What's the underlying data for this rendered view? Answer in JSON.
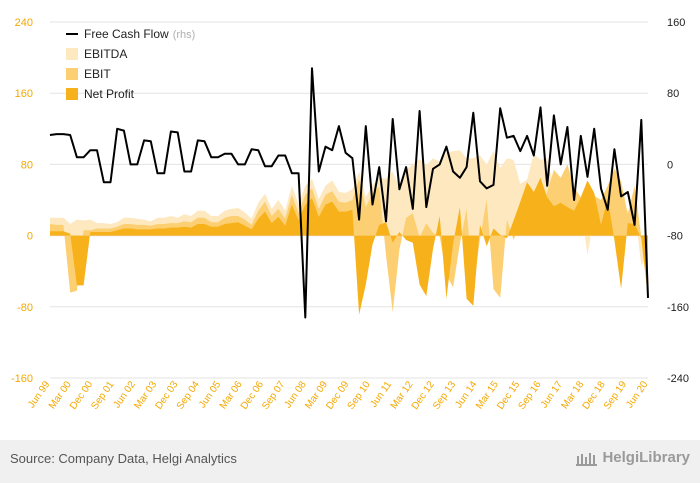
{
  "chart_data": {
    "type": "area",
    "title": "",
    "xlabel": "",
    "ylabel": "",
    "ylim_left": [
      -160,
      240
    ],
    "ylim_right": [
      -240,
      160
    ],
    "left_ticks": [
      "240",
      "160",
      "80",
      "0",
      "-80",
      "-160"
    ],
    "right_ticks": [
      "160",
      "80",
      "0",
      "-80",
      "-160",
      "-240"
    ],
    "x_tick_labels": [
      "Jun 99",
      "Mar 00",
      "Dec 00",
      "Sep 01",
      "Jun 02",
      "Mar 03",
      "Dec 03",
      "Sep 04",
      "Jun 05",
      "Mar 06",
      "Dec 06",
      "Sep 07",
      "Jun 08",
      "Mar 09",
      "Dec 09",
      "Sep 10",
      "Jun 11",
      "Mar 12",
      "Dec 12",
      "Sep 13",
      "Jun 14",
      "Mar 15",
      "Dec 15",
      "Sep 16",
      "Jun 17",
      "Mar 18",
      "Dec 18",
      "Sep 19",
      "Jun 20"
    ],
    "legend_position": "top-left",
    "colors": {
      "fcf": "#000000",
      "ebitda": "#fde8c0",
      "ebit": "#fccf73",
      "net_profit": "#f7b21b",
      "left_axis": "#f5a800",
      "grid": "#e3e3e3"
    },
    "series": [
      {
        "name": "Free Cash Flow",
        "axis": "right",
        "values": [
          33,
          34,
          34,
          33,
          8,
          8,
          16,
          16,
          -20,
          -20,
          40,
          38,
          0,
          0,
          27,
          26,
          -10,
          -10,
          37,
          36,
          -8,
          -8,
          27,
          26,
          8,
          8,
          12,
          12,
          0,
          0,
          17,
          16,
          -2,
          -2,
          10,
          10,
          -10,
          -10,
          -172,
          108,
          -8,
          20,
          16,
          43,
          13,
          7,
          -62,
          43,
          -45,
          -3,
          -64,
          51,
          -28,
          -3,
          -50,
          60,
          -48,
          -5,
          0,
          20,
          -8,
          -15,
          -3,
          58,
          -19,
          -27,
          -23,
          63,
          30,
          32,
          15,
          32,
          10,
          64,
          -24,
          55,
          0,
          42,
          -40,
          32,
          -14,
          40,
          -27,
          -51,
          17,
          -36,
          -31,
          -68,
          50,
          -150
        ]
      },
      {
        "name": "EBITDA",
        "axis": "left",
        "values": [
          20,
          20,
          20,
          13,
          18,
          17,
          18,
          14,
          14,
          13,
          15,
          20,
          20,
          19,
          18,
          16,
          20,
          20,
          22,
          20,
          24,
          22,
          28,
          28,
          22,
          22,
          28,
          30,
          31,
          26,
          19,
          37,
          47,
          30,
          40,
          28,
          56,
          35,
          56,
          64,
          41,
          56,
          62,
          49,
          48,
          52,
          72,
          43,
          57,
          65,
          64,
          72,
          53,
          74,
          80,
          86,
          79,
          87,
          83,
          93,
          95,
          96,
          87,
          87,
          90,
          80,
          95,
          76,
          87,
          85,
          58,
          63,
          92,
          85,
          87,
          54,
          21,
          50,
          55,
          33,
          -22,
          24,
          32,
          46,
          49,
          29,
          28,
          30,
          -34,
          -21
        ]
      },
      {
        "name": "EBIT",
        "axis": "left",
        "values": [
          13,
          12,
          12,
          -64,
          -62,
          6,
          6,
          8,
          8,
          8,
          10,
          13,
          13,
          12,
          12,
          11,
          13,
          13,
          14,
          14,
          16,
          15,
          20,
          20,
          15,
          15,
          20,
          22,
          22,
          18,
          12,
          28,
          38,
          22,
          30,
          19,
          46,
          25,
          46,
          53,
          30,
          46,
          50,
          38,
          37,
          40,
          63,
          32,
          47,
          55,
          -22,
          -86,
          -16,
          20,
          25,
          -2,
          14,
          3,
          -1,
          -44,
          -58,
          -9,
          30,
          -59,
          -4,
          41,
          -60,
          -70,
          18,
          -5,
          14,
          4,
          5,
          24,
          49,
          74,
          65,
          80,
          54,
          43,
          47,
          45,
          40,
          56,
          75,
          61,
          24,
          56,
          -1,
          -52
        ]
      },
      {
        "name": "Net Profit",
        "axis": "left",
        "values": [
          5,
          5,
          5,
          2,
          -56,
          -56,
          4,
          4,
          4,
          4,
          6,
          8,
          8,
          7,
          7,
          7,
          8,
          8,
          9,
          9,
          10,
          9,
          13,
          13,
          10,
          10,
          13,
          14,
          15,
          11,
          7,
          19,
          27,
          14,
          21,
          11,
          35,
          17,
          35,
          42,
          21,
          35,
          38,
          27,
          27,
          29,
          -89,
          -55,
          -10,
          12,
          15,
          -8,
          4,
          -5,
          -8,
          -55,
          -68,
          -15,
          22,
          -71,
          -9,
          32,
          -71,
          -79,
          12,
          -12,
          8,
          1,
          -3,
          17,
          38,
          60,
          49,
          65,
          43,
          33,
          37,
          32,
          28,
          43,
          62,
          48,
          12,
          42,
          -5,
          -60,
          14,
          13,
          -3,
          -70
        ]
      }
    ]
  },
  "legend": [
    {
      "label": "Free Cash Flow",
      "note": "(rhs)"
    },
    {
      "label": "EBITDA"
    },
    {
      "label": "EBIT"
    },
    {
      "label": "Net Profit"
    }
  ],
  "footer": {
    "source": "Source: Company Data, Helgi Analytics",
    "brand": "HelgiLibrary"
  }
}
